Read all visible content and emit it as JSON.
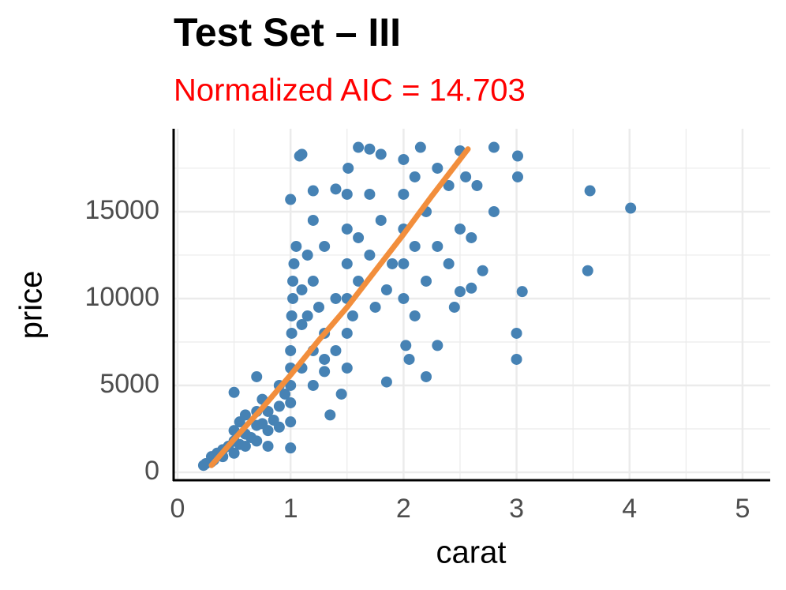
{
  "chart_data": {
    "type": "scatter",
    "title": "Test Set – III",
    "subtitle": "Normalized AIC = 14.703",
    "x_label": "carat",
    "y_label": "price",
    "xlim": [
      -0.035,
      5.245
    ],
    "ylim": [
      -455,
      19770
    ],
    "xticks": [
      0,
      1,
      2,
      3,
      4,
      5
    ],
    "yticks": [
      0,
      5000,
      10000,
      15000
    ],
    "grid": true,
    "minor_grid": true,
    "points": {
      "color": "#4682b4",
      "x": [
        0.23,
        0.25,
        0.3,
        0.3,
        0.32,
        0.35,
        0.4,
        0.4,
        0.45,
        0.5,
        0.5,
        0.5,
        0.55,
        0.55,
        0.6,
        0.6,
        0.6,
        0.65,
        0.7,
        0.7,
        0.7,
        0.7,
        0.75,
        0.75,
        0.8,
        0.8,
        0.85,
        0.9,
        0.9,
        0.9,
        0.95,
        1.0,
        1.0,
        1.0,
        1.0,
        1.0,
        1.01,
        1.01,
        1.02,
        1.02,
        1.03,
        1.05,
        1.1,
        1.1,
        1.1,
        1.15,
        1.15,
        1.2,
        1.2,
        1.2,
        1.2,
        1.25,
        1.3,
        1.3,
        1.3,
        1.4,
        1.4,
        1.5,
        1.5,
        1.5,
        1.5,
        1.5,
        1.5,
        1.51,
        1.55,
        1.6,
        1.6,
        1.6,
        1.7,
        1.7,
        1.7,
        1.75,
        1.8,
        1.8,
        1.85,
        1.9,
        2.0,
        2.0,
        2.0,
        2.0,
        2.0,
        2.02,
        2.05,
        2.1,
        2.1,
        2.1,
        2.15,
        2.2,
        2.2,
        2.3,
        2.3,
        2.3,
        2.4,
        2.4,
        2.5,
        2.5,
        2.55,
        2.2,
        1.35,
        1.3,
        0.8,
        1.0,
        1.85,
        1.45,
        1.4,
        1.0,
        1.1,
        1.08,
        1.2,
        0.5,
        3.01,
        3.01,
        3.65,
        4.01,
        3.63,
        3.05,
        3.0,
        3.0,
        2.8,
        2.8,
        2.7,
        2.6,
        2.5,
        2.6,
        2.65,
        2.45
      ],
      "y": [
        400,
        500,
        600,
        900,
        700,
        1100,
        900,
        1300,
        1500,
        1100,
        1800,
        2400,
        1600,
        2900,
        1500,
        2200,
        3300,
        2000,
        1800,
        2700,
        3500,
        5500,
        2800,
        4200,
        2400,
        3500,
        3000,
        2600,
        3800,
        5000,
        4500,
        2900,
        4000,
        5000,
        6000,
        7000,
        8000,
        9000,
        10000,
        11000,
        12000,
        13000,
        6000,
        8500,
        10500,
        9000,
        12500,
        5000,
        7000,
        11000,
        14500,
        9500,
        6500,
        8000,
        13000,
        7000,
        10000,
        6000,
        8000,
        10000,
        12000,
        14000,
        16000,
        17500,
        9000,
        11000,
        13500,
        18700,
        12500,
        16000,
        18600,
        9500,
        14500,
        18300,
        10500,
        12000,
        10000,
        12000,
        14000,
        16000,
        18000,
        7300,
        6500,
        9000,
        13000,
        17000,
        18700,
        11000,
        15000,
        13000,
        17500,
        7300,
        16500,
        12000,
        18500,
        14000,
        17000,
        5500,
        3300,
        5800,
        1500,
        1400,
        5200,
        4500,
        16300,
        15700,
        18300,
        18200,
        16200,
        4600,
        18200,
        17000,
        16200,
        15200,
        11600,
        10400,
        8000,
        6500,
        18700,
        15000,
        11600,
        10600,
        10400,
        13500,
        16500,
        9500
      ]
    },
    "fit": {
      "color": "#f28e3c",
      "x": [
        0.3,
        0.5,
        0.75,
        1,
        1.25,
        1.5,
        1.75,
        2,
        2.25,
        2.57
      ],
      "y": [
        400,
        1900,
        3700,
        5600,
        7600,
        9500,
        11600,
        13700,
        15900,
        18600
      ]
    }
  }
}
